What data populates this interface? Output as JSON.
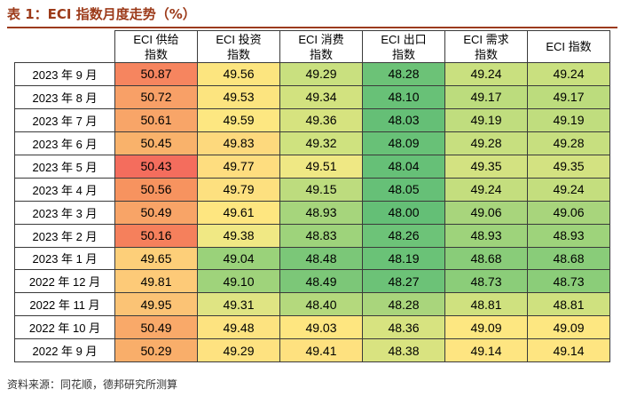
{
  "title": "表 1：ECI 指数月度走势（%）",
  "source": "资料来源：同花顺，德邦研究所测算",
  "chart_data": {
    "type": "table",
    "columns": [
      {
        "line1": "ECI 供给",
        "line2": "指数"
      },
      {
        "line1": "ECI 投资",
        "line2": "指数"
      },
      {
        "line1": "ECI 消费",
        "line2": "指数"
      },
      {
        "line1": "ECI 出口",
        "line2": "指数"
      },
      {
        "line1": "ECI 需求",
        "line2": "指数"
      },
      {
        "line1": "ECI 指数",
        "line2": ""
      }
    ],
    "rows": [
      {
        "label": "2023 年 9 月",
        "values": [
          "50.87",
          "49.56",
          "49.29",
          "48.28",
          "49.24",
          "49.24"
        ],
        "colors": [
          "#f6855f",
          "#fce57f",
          "#c9e07f",
          "#6cc277",
          "#c9e07f",
          "#c9e07f"
        ]
      },
      {
        "label": "2023 年 8 月",
        "values": [
          "50.72",
          "49.53",
          "49.34",
          "48.10",
          "49.17",
          "49.17"
        ],
        "colors": [
          "#f8a067",
          "#fce47f",
          "#d2e27f",
          "#68c177",
          "#bcdc7d",
          "#bcdc7d"
        ]
      },
      {
        "label": "2023 年 7 月",
        "values": [
          "50.61",
          "49.59",
          "49.36",
          "48.03",
          "49.19",
          "49.19"
        ],
        "colors": [
          "#f8a568",
          "#fde781",
          "#d6e37f",
          "#65bf76",
          "#c0dd7e",
          "#c0dd7e"
        ]
      },
      {
        "label": "2023 年 6 月",
        "values": [
          "50.45",
          "49.83",
          "49.32",
          "48.09",
          "49.28",
          "49.28"
        ],
        "colors": [
          "#f9b26b",
          "#fdd97d",
          "#cfe27f",
          "#68c177",
          "#c7df7f",
          "#c7df7f"
        ]
      },
      {
        "label": "2023 年 5 月",
        "values": [
          "50.43",
          "49.77",
          "49.51",
          "48.04",
          "49.35",
          "49.35"
        ],
        "colors": [
          "#f46d5d",
          "#fedd7f",
          "#efe884",
          "#66c077",
          "#d3e281",
          "#d3e281"
        ]
      },
      {
        "label": "2023 年 4 月",
        "values": [
          "50.56",
          "49.79",
          "49.15",
          "48.05",
          "49.24",
          "49.24"
        ],
        "colors": [
          "#f7935f",
          "#fde07f",
          "#bddc7e",
          "#66c077",
          "#c4de7e",
          "#c4de7e"
        ]
      },
      {
        "label": "2023 年 3 月",
        "values": [
          "50.49",
          "49.61",
          "48.93",
          "48.00",
          "49.06",
          "49.06"
        ],
        "colors": [
          "#f8a467",
          "#fee680",
          "#a6d57c",
          "#64bf76",
          "#a8d57c",
          "#a8d57c"
        ]
      },
      {
        "label": "2023 年 2 月",
        "values": [
          "50.16",
          "49.38",
          "48.83",
          "48.26",
          "48.93",
          "48.93"
        ],
        "colors": [
          "#f5805c",
          "#f0e884",
          "#9ed37b",
          "#6dc378",
          "#9ed37b",
          "#9ed37b"
        ]
      },
      {
        "label": "2023 年 1 月",
        "values": [
          "49.65",
          "49.04",
          "48.48",
          "48.19",
          "48.68",
          "48.68"
        ],
        "colors": [
          "#fdcf79",
          "#9ad27a",
          "#7bc778",
          "#6ac277",
          "#89cc79",
          "#89cc79"
        ]
      },
      {
        "label": "2022 年 12 月",
        "values": [
          "49.81",
          "49.10",
          "48.49",
          "48.27",
          "48.73",
          "48.73"
        ],
        "colors": [
          "#fdca78",
          "#9fd37b",
          "#7cc778",
          "#6cc277",
          "#8bcd79",
          "#8bcd79"
        ]
      },
      {
        "label": "2022 年 11 月",
        "values": [
          "49.95",
          "49.31",
          "48.40",
          "48.28",
          "48.81",
          "48.81"
        ],
        "colors": [
          "#fbc375",
          "#dfe483",
          "#b4d97d",
          "#a9d57c",
          "#cfe17f",
          "#cfe17f"
        ]
      },
      {
        "label": "2022 年 10 月",
        "values": [
          "50.49",
          "49.48",
          "49.03",
          "48.36",
          "49.09",
          "49.09"
        ],
        "colors": [
          "#f9a969",
          "#fde380",
          "#fee680",
          "#d7e380",
          "#fde781",
          "#fde781"
        ]
      },
      {
        "label": "2022 年 9 月",
        "values": [
          "50.29",
          "49.29",
          "49.41",
          "48.38",
          "49.14",
          "49.14"
        ],
        "colors": [
          "#f9ae6a",
          "#fee280",
          "#fee17f",
          "#d9e380",
          "#fee581",
          "#fee581"
        ]
      }
    ]
  }
}
